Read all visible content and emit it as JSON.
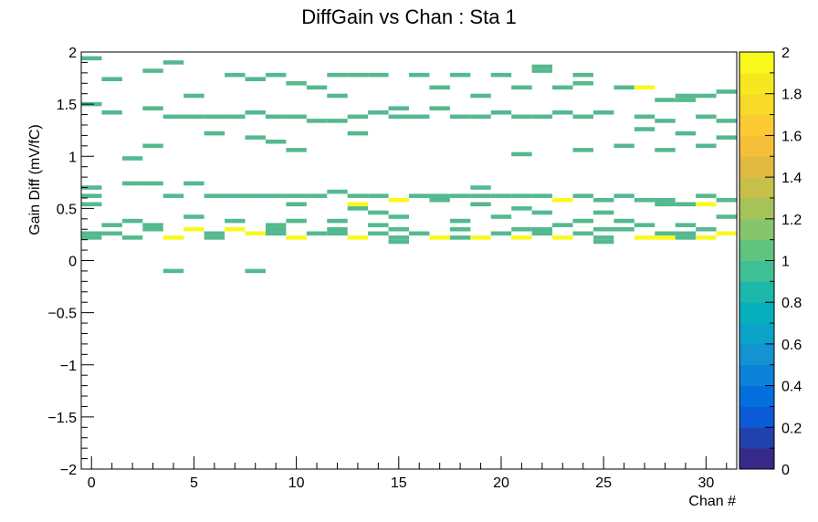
{
  "chart_data": {
    "type": "heatmap",
    "title": "DiffGain vs Chan : Sta 1",
    "xlabel": "Chan #",
    "ylabel": "Gain Diff (mV/fC)",
    "xlim": [
      -0.5,
      31.5
    ],
    "ylim": [
      -2,
      2
    ],
    "x_ticks": [
      "0",
      "5",
      "10",
      "15",
      "20",
      "25",
      "30"
    ],
    "x_tick_values": [
      0,
      5,
      10,
      15,
      20,
      25,
      30
    ],
    "y_ticks": [
      "2",
      "1.5",
      "1",
      "0.5",
      "0",
      "−0.5",
      "−1",
      "−1.5",
      "−2"
    ],
    "y_tick_values": [
      2,
      1.5,
      1,
      0.5,
      0,
      -0.5,
      -1,
      -1.5,
      -2
    ],
    "ybin_width": 0.04,
    "zlim": [
      0,
      2
    ],
    "z_ticks": [
      "0",
      "0.2",
      "0.4",
      "0.6",
      "0.8",
      "1",
      "1.2",
      "1.4",
      "1.6",
      "1.8",
      "2"
    ],
    "z_tick_values": [
      0,
      0.2,
      0.4,
      0.6,
      0.8,
      1,
      1.2,
      1.4,
      1.6,
      1.8,
      2
    ],
    "colors": {
      "count1": "#54b98f",
      "count2": "#f9f91e",
      "palette": [
        "#352a87",
        "#2142ad",
        "#0b5bd8",
        "#036fdc",
        "#0d81d8",
        "#1393d2",
        "#0ba3c9",
        "#05b0bc",
        "#1cb8a9",
        "#3fbf95",
        "#60c47f",
        "#85c56b",
        "#a6c35a",
        "#c6bf4a",
        "#e2b941",
        "#f5bf3a",
        "#fccb33",
        "#f7da28",
        "#f5e81e",
        "#f9f91e"
      ]
    },
    "cells": [
      {
        "x": 0,
        "y": 1.94,
        "z": 1
      },
      {
        "x": 0,
        "y": 1.5,
        "z": 1
      },
      {
        "x": 0,
        "y": 0.7,
        "z": 1
      },
      {
        "x": 0,
        "y": 0.62,
        "z": 1
      },
      {
        "x": 0,
        "y": 0.54,
        "z": 1
      },
      {
        "x": 0,
        "y": 0.26,
        "z": 1
      },
      {
        "x": 0,
        "y": 0.22,
        "z": 1
      },
      {
        "x": 1,
        "y": 1.74,
        "z": 1
      },
      {
        "x": 1,
        "y": 1.42,
        "z": 1
      },
      {
        "x": 1,
        "y": 0.34,
        "z": 1
      },
      {
        "x": 1,
        "y": 0.26,
        "z": 1
      },
      {
        "x": 2,
        "y": 0.98,
        "z": 1
      },
      {
        "x": 2,
        "y": 0.74,
        "z": 1
      },
      {
        "x": 2,
        "y": 0.38,
        "z": 1
      },
      {
        "x": 2,
        "y": 0.22,
        "z": 1
      },
      {
        "x": 3,
        "y": 1.82,
        "z": 1
      },
      {
        "x": 3,
        "y": 1.46,
        "z": 1
      },
      {
        "x": 3,
        "y": 1.1,
        "z": 1
      },
      {
        "x": 3,
        "y": 0.74,
        "z": 1
      },
      {
        "x": 3,
        "y": 0.34,
        "z": 1
      },
      {
        "x": 3,
        "y": 0.3,
        "z": 1
      },
      {
        "x": 4,
        "y": 1.9,
        "z": 1
      },
      {
        "x": 4,
        "y": 1.38,
        "z": 1
      },
      {
        "x": 4,
        "y": 0.62,
        "z": 1
      },
      {
        "x": 4,
        "y": 0.22,
        "z": 2
      },
      {
        "x": 4,
        "y": -0.1,
        "z": 1
      },
      {
        "x": 5,
        "y": 1.58,
        "z": 1
      },
      {
        "x": 5,
        "y": 1.38,
        "z": 1
      },
      {
        "x": 5,
        "y": 0.74,
        "z": 1
      },
      {
        "x": 5,
        "y": 0.42,
        "z": 1
      },
      {
        "x": 5,
        "y": 0.3,
        "z": 2
      },
      {
        "x": 6,
        "y": 1.38,
        "z": 1
      },
      {
        "x": 6,
        "y": 1.22,
        "z": 1
      },
      {
        "x": 6,
        "y": 0.62,
        "z": 1
      },
      {
        "x": 6,
        "y": 0.26,
        "z": 1
      },
      {
        "x": 6,
        "y": 0.22,
        "z": 1
      },
      {
        "x": 7,
        "y": 1.78,
        "z": 1
      },
      {
        "x": 7,
        "y": 1.38,
        "z": 1
      },
      {
        "x": 7,
        "y": 0.62,
        "z": 1
      },
      {
        "x": 7,
        "y": 0.38,
        "z": 1
      },
      {
        "x": 7,
        "y": 0.3,
        "z": 2
      },
      {
        "x": 8,
        "y": 1.74,
        "z": 1
      },
      {
        "x": 8,
        "y": 1.42,
        "z": 1
      },
      {
        "x": 8,
        "y": 1.18,
        "z": 1
      },
      {
        "x": 8,
        "y": 0.62,
        "z": 1
      },
      {
        "x": 8,
        "y": 0.26,
        "z": 2
      },
      {
        "x": 8,
        "y": -0.1,
        "z": 1
      },
      {
        "x": 9,
        "y": 1.78,
        "z": 1
      },
      {
        "x": 9,
        "y": 1.38,
        "z": 1
      },
      {
        "x": 9,
        "y": 1.14,
        "z": 1
      },
      {
        "x": 9,
        "y": 0.62,
        "z": 1
      },
      {
        "x": 9,
        "y": 0.34,
        "z": 1
      },
      {
        "x": 9,
        "y": 0.3,
        "z": 1
      },
      {
        "x": 9,
        "y": 0.26,
        "z": 1
      },
      {
        "x": 10,
        "y": 1.7,
        "z": 1
      },
      {
        "x": 10,
        "y": 1.38,
        "z": 1
      },
      {
        "x": 10,
        "y": 1.06,
        "z": 1
      },
      {
        "x": 10,
        "y": 0.62,
        "z": 1
      },
      {
        "x": 10,
        "y": 0.54,
        "z": 1
      },
      {
        "x": 10,
        "y": 0.38,
        "z": 1
      },
      {
        "x": 10,
        "y": 0.22,
        "z": 2
      },
      {
        "x": 11,
        "y": 1.66,
        "z": 1
      },
      {
        "x": 11,
        "y": 1.34,
        "z": 1
      },
      {
        "x": 11,
        "y": 0.62,
        "z": 1
      },
      {
        "x": 11,
        "y": 0.26,
        "z": 1
      },
      {
        "x": 12,
        "y": 1.78,
        "z": 1
      },
      {
        "x": 12,
        "y": 1.58,
        "z": 1
      },
      {
        "x": 12,
        "y": 1.34,
        "z": 1
      },
      {
        "x": 12,
        "y": 0.66,
        "z": 1
      },
      {
        "x": 12,
        "y": 0.38,
        "z": 1
      },
      {
        "x": 12,
        "y": 0.3,
        "z": 1
      },
      {
        "x": 12,
        "y": 0.26,
        "z": 1
      },
      {
        "x": 13,
        "y": 1.78,
        "z": 1
      },
      {
        "x": 13,
        "y": 1.38,
        "z": 1
      },
      {
        "x": 13,
        "y": 1.22,
        "z": 1
      },
      {
        "x": 13,
        "y": 0.62,
        "z": 1
      },
      {
        "x": 13,
        "y": 0.54,
        "z": 2
      },
      {
        "x": 13,
        "y": 0.5,
        "z": 1
      },
      {
        "x": 13,
        "y": 0.22,
        "z": 2
      },
      {
        "x": 14,
        "y": 1.78,
        "z": 1
      },
      {
        "x": 14,
        "y": 1.42,
        "z": 1
      },
      {
        "x": 14,
        "y": 0.62,
        "z": 1
      },
      {
        "x": 14,
        "y": 0.46,
        "z": 1
      },
      {
        "x": 14,
        "y": 0.34,
        "z": 1
      },
      {
        "x": 14,
        "y": 0.26,
        "z": 1
      },
      {
        "x": 15,
        "y": 1.46,
        "z": 1
      },
      {
        "x": 15,
        "y": 1.38,
        "z": 1
      },
      {
        "x": 15,
        "y": 0.58,
        "z": 2
      },
      {
        "x": 15,
        "y": 0.42,
        "z": 1
      },
      {
        "x": 15,
        "y": 0.3,
        "z": 1
      },
      {
        "x": 15,
        "y": 0.22,
        "z": 1
      },
      {
        "x": 15,
        "y": 0.18,
        "z": 1
      },
      {
        "x": 16,
        "y": 1.78,
        "z": 1
      },
      {
        "x": 16,
        "y": 1.38,
        "z": 1
      },
      {
        "x": 16,
        "y": 0.62,
        "z": 1
      },
      {
        "x": 16,
        "y": 0.26,
        "z": 1
      },
      {
        "x": 17,
        "y": 1.66,
        "z": 1
      },
      {
        "x": 17,
        "y": 1.46,
        "z": 1
      },
      {
        "x": 17,
        "y": 0.62,
        "z": 1
      },
      {
        "x": 17,
        "y": 0.58,
        "z": 1
      },
      {
        "x": 17,
        "y": 0.22,
        "z": 2
      },
      {
        "x": 18,
        "y": 1.78,
        "z": 1
      },
      {
        "x": 18,
        "y": 1.38,
        "z": 1
      },
      {
        "x": 18,
        "y": 0.62,
        "z": 1
      },
      {
        "x": 18,
        "y": 0.38,
        "z": 1
      },
      {
        "x": 18,
        "y": 0.3,
        "z": 1
      },
      {
        "x": 18,
        "y": 0.22,
        "z": 1
      },
      {
        "x": 19,
        "y": 1.58,
        "z": 1
      },
      {
        "x": 19,
        "y": 1.38,
        "z": 1
      },
      {
        "x": 19,
        "y": 0.7,
        "z": 1
      },
      {
        "x": 19,
        "y": 0.62,
        "z": 1
      },
      {
        "x": 19,
        "y": 0.54,
        "z": 1
      },
      {
        "x": 19,
        "y": 0.22,
        "z": 2
      },
      {
        "x": 20,
        "y": 1.78,
        "z": 1
      },
      {
        "x": 20,
        "y": 1.42,
        "z": 1
      },
      {
        "x": 20,
        "y": 0.62,
        "z": 1
      },
      {
        "x": 20,
        "y": 0.42,
        "z": 1
      },
      {
        "x": 20,
        "y": 0.26,
        "z": 1
      },
      {
        "x": 21,
        "y": 1.66,
        "z": 1
      },
      {
        "x": 21,
        "y": 1.38,
        "z": 1
      },
      {
        "x": 21,
        "y": 1.02,
        "z": 1
      },
      {
        "x": 21,
        "y": 0.62,
        "z": 1
      },
      {
        "x": 21,
        "y": 0.5,
        "z": 1
      },
      {
        "x": 21,
        "y": 0.3,
        "z": 1
      },
      {
        "x": 21,
        "y": 0.22,
        "z": 2
      },
      {
        "x": 22,
        "y": 1.86,
        "z": 1
      },
      {
        "x": 22,
        "y": 1.82,
        "z": 1
      },
      {
        "x": 22,
        "y": 1.38,
        "z": 1
      },
      {
        "x": 22,
        "y": 0.62,
        "z": 1
      },
      {
        "x": 22,
        "y": 0.46,
        "z": 1
      },
      {
        "x": 22,
        "y": 0.3,
        "z": 1
      },
      {
        "x": 22,
        "y": 0.26,
        "z": 1
      },
      {
        "x": 23,
        "y": 1.66,
        "z": 1
      },
      {
        "x": 23,
        "y": 1.42,
        "z": 1
      },
      {
        "x": 23,
        "y": 0.58,
        "z": 2
      },
      {
        "x": 23,
        "y": 0.34,
        "z": 1
      },
      {
        "x": 23,
        "y": 0.22,
        "z": 2
      },
      {
        "x": 24,
        "y": 1.78,
        "z": 1
      },
      {
        "x": 24,
        "y": 1.7,
        "z": 1
      },
      {
        "x": 24,
        "y": 1.38,
        "z": 1
      },
      {
        "x": 24,
        "y": 1.06,
        "z": 1
      },
      {
        "x": 24,
        "y": 0.62,
        "z": 1
      },
      {
        "x": 24,
        "y": 0.38,
        "z": 1
      },
      {
        "x": 24,
        "y": 0.26,
        "z": 1
      },
      {
        "x": 25,
        "y": 1.42,
        "z": 1
      },
      {
        "x": 25,
        "y": 0.58,
        "z": 1
      },
      {
        "x": 25,
        "y": 0.46,
        "z": 1
      },
      {
        "x": 25,
        "y": 0.3,
        "z": 1
      },
      {
        "x": 25,
        "y": 0.22,
        "z": 1
      },
      {
        "x": 25,
        "y": 0.18,
        "z": 1
      },
      {
        "x": 26,
        "y": 1.66,
        "z": 1
      },
      {
        "x": 26,
        "y": 1.1,
        "z": 1
      },
      {
        "x": 26,
        "y": 0.62,
        "z": 1
      },
      {
        "x": 26,
        "y": 0.38,
        "z": 1
      },
      {
        "x": 26,
        "y": 0.3,
        "z": 1
      },
      {
        "x": 27,
        "y": 1.66,
        "z": 2
      },
      {
        "x": 27,
        "y": 1.38,
        "z": 1
      },
      {
        "x": 27,
        "y": 1.26,
        "z": 1
      },
      {
        "x": 27,
        "y": 0.58,
        "z": 1
      },
      {
        "x": 27,
        "y": 0.34,
        "z": 1
      },
      {
        "x": 27,
        "y": 0.22,
        "z": 2
      },
      {
        "x": 28,
        "y": 1.54,
        "z": 1
      },
      {
        "x": 28,
        "y": 1.34,
        "z": 1
      },
      {
        "x": 28,
        "y": 1.06,
        "z": 1
      },
      {
        "x": 28,
        "y": 0.58,
        "z": 1
      },
      {
        "x": 28,
        "y": 0.54,
        "z": 1
      },
      {
        "x": 28,
        "y": 0.26,
        "z": 1
      },
      {
        "x": 28,
        "y": 0.22,
        "z": 2
      },
      {
        "x": 29,
        "y": 1.58,
        "z": 1
      },
      {
        "x": 29,
        "y": 1.54,
        "z": 1
      },
      {
        "x": 29,
        "y": 1.22,
        "z": 1
      },
      {
        "x": 29,
        "y": 0.54,
        "z": 1
      },
      {
        "x": 29,
        "y": 0.34,
        "z": 1
      },
      {
        "x": 29,
        "y": 0.26,
        "z": 1
      },
      {
        "x": 29,
        "y": 0.22,
        "z": 1
      },
      {
        "x": 30,
        "y": 1.58,
        "z": 1
      },
      {
        "x": 30,
        "y": 1.38,
        "z": 1
      },
      {
        "x": 30,
        "y": 1.1,
        "z": 1
      },
      {
        "x": 30,
        "y": 0.62,
        "z": 1
      },
      {
        "x": 30,
        "y": 0.54,
        "z": 2
      },
      {
        "x": 30,
        "y": 0.3,
        "z": 1
      },
      {
        "x": 30,
        "y": 0.22,
        "z": 2
      },
      {
        "x": 31,
        "y": 1.62,
        "z": 1
      },
      {
        "x": 31,
        "y": 1.34,
        "z": 1
      },
      {
        "x": 31,
        "y": 1.18,
        "z": 1
      },
      {
        "x": 31,
        "y": 0.58,
        "z": 1
      },
      {
        "x": 31,
        "y": 0.42,
        "z": 1
      },
      {
        "x": 31,
        "y": 0.26,
        "z": 2
      }
    ]
  }
}
